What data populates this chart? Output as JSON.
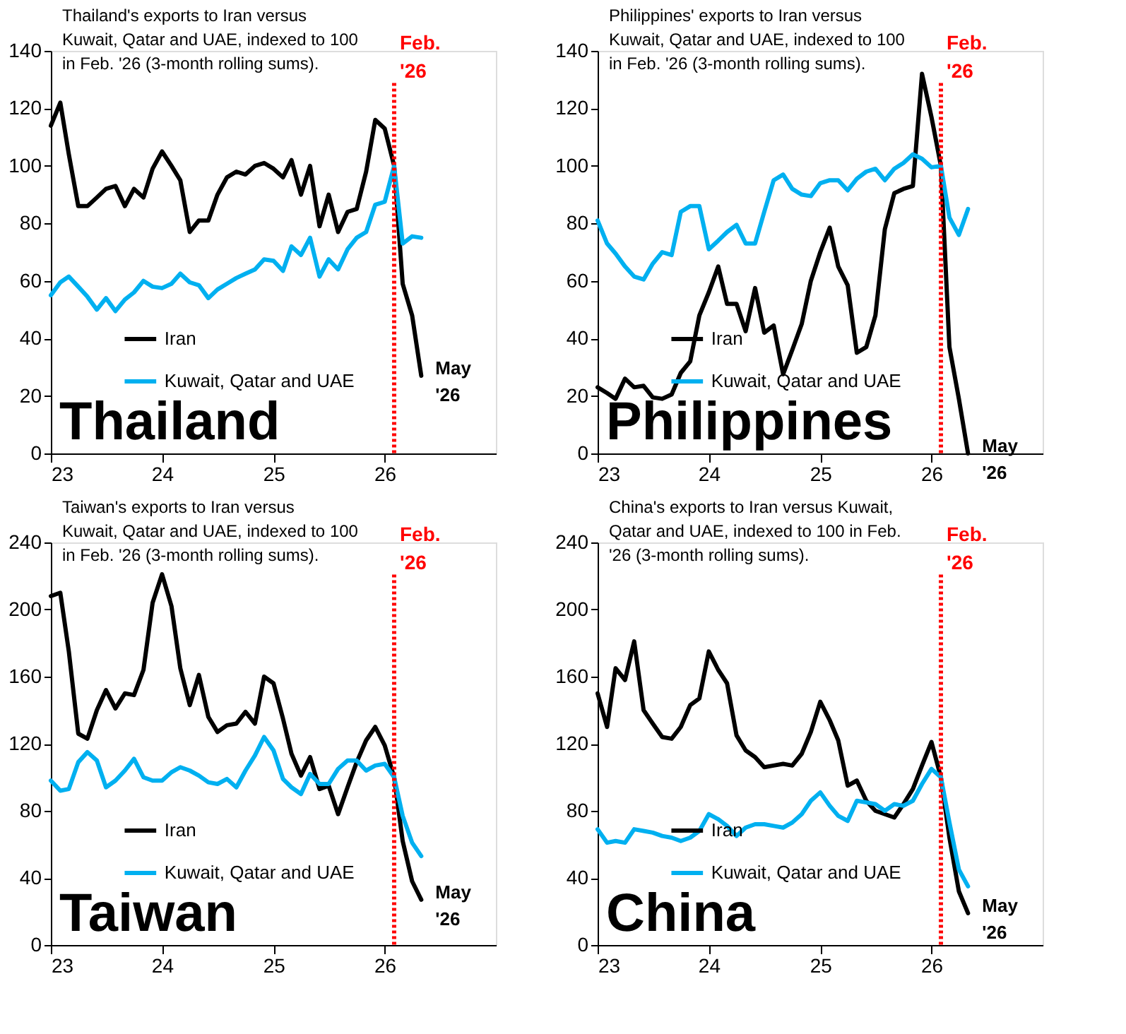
{
  "chart_data": [
    {
      "type": "line",
      "title": "Thailand's exports to Iran versus Kuwait, Qatar and UAE, indexed to 100 in Feb. '26 (3-month rolling sums).",
      "x": [
        "2023-01",
        "2023-02",
        "2023-03",
        "2023-04",
        "2023-05",
        "2023-06",
        "2023-07",
        "2023-08",
        "2023-09",
        "2023-10",
        "2023-11",
        "2023-12",
        "2024-01",
        "2024-02",
        "2024-03",
        "2024-04",
        "2024-05",
        "2024-06",
        "2024-07",
        "2024-08",
        "2024-09",
        "2024-10",
        "2024-11",
        "2024-12",
        "2025-01",
        "2025-02",
        "2025-03",
        "2025-04",
        "2025-05",
        "2025-06",
        "2025-07",
        "2025-08",
        "2025-09",
        "2025-10",
        "2025-11",
        "2025-12",
        "2026-01",
        "2026-02",
        "2026-03",
        "2026-04",
        "2026-05"
      ],
      "series": [
        {
          "name": "Iran",
          "color": "#000000",
          "values": [
            114,
            122,
            104,
            86,
            86,
            89,
            92,
            93,
            86,
            92,
            89,
            99,
            105,
            100,
            95,
            77,
            81,
            81,
            90,
            96,
            98,
            97,
            100,
            101,
            99,
            96,
            102,
            90,
            100,
            79,
            90,
            77,
            84,
            85,
            98,
            116,
            113,
            100,
            59,
            48,
            27
          ]
        },
        {
          "name": "Kuwait, Qatar and UAE",
          "color": "#00b0f0",
          "values": [
            55,
            59.5,
            61.5,
            58,
            54.5,
            50,
            54,
            49.5,
            53.5,
            56,
            60,
            58,
            57.5,
            59,
            62.5,
            59.5,
            58.5,
            54,
            57,
            59,
            61,
            62.5,
            64,
            67.5,
            67,
            63.5,
            72,
            69,
            75,
            61.5,
            67.5,
            64,
            71,
            75,
            77,
            86.5,
            87.5,
            100,
            73,
            75.5,
            75
          ]
        }
      ],
      "xlim": [
        "2023-01",
        "2027-01"
      ],
      "xticks": [
        {
          "value": "2023-01",
          "label": "23"
        },
        {
          "value": "2024-01",
          "label": "24"
        },
        {
          "value": "2025-01",
          "label": "25"
        },
        {
          "value": "2026-01",
          "label": "26"
        }
      ],
      "ylim": [
        0,
        140
      ],
      "yticks": [
        0,
        20,
        40,
        60,
        80,
        100,
        120,
        140
      ],
      "ref_lines": [
        {
          "axis": "x",
          "value": "2026-02",
          "label": "Feb. '26",
          "color": "#ff0000",
          "line_style": "dotted"
        }
      ],
      "annotations": [
        "Thailand",
        {
          "text": "May '26",
          "x": "2026-05",
          "y": 27
        }
      ],
      "legend": "bottom left"
    },
    {
      "type": "line",
      "title": "Philippines' exports to Iran versus Kuwait, Qatar and UAE, indexed to 100 in Feb. '26 (3-month rolling sums).",
      "x": [
        "2023-01",
        "2023-02",
        "2023-03",
        "2023-04",
        "2023-05",
        "2023-06",
        "2023-07",
        "2023-08",
        "2023-09",
        "2023-10",
        "2023-11",
        "2023-12",
        "2024-01",
        "2024-02",
        "2024-03",
        "2024-04",
        "2024-05",
        "2024-06",
        "2024-07",
        "2024-08",
        "2024-09",
        "2024-10",
        "2024-11",
        "2024-12",
        "2025-01",
        "2025-02",
        "2025-03",
        "2025-04",
        "2025-05",
        "2025-06",
        "2025-07",
        "2025-08",
        "2025-09",
        "2025-10",
        "2025-11",
        "2025-12",
        "2026-01",
        "2026-02",
        "2026-03",
        "2026-04",
        "2026-05"
      ],
      "series": [
        {
          "name": "Iran",
          "color": "#000000",
          "values": [
            23,
            21,
            19,
            26,
            23,
            23.5,
            19.5,
            19,
            20.5,
            28,
            32,
            48,
            56,
            65,
            52,
            52,
            42.5,
            57.5,
            42,
            44.5,
            27.5,
            36,
            45,
            60,
            70,
            78.5,
            65,
            58.5,
            35,
            37,
            48,
            78,
            90.5,
            92,
            93,
            132,
            117,
            100,
            37,
            19,
            0
          ]
        },
        {
          "name": "Kuwait, Qatar and UAE",
          "color": "#00b0f0",
          "values": [
            81,
            73,
            69.5,
            65,
            61.5,
            60.5,
            66,
            70,
            69,
            84,
            86,
            86,
            71,
            74,
            77,
            79.5,
            73,
            73,
            84,
            95,
            97,
            92,
            90,
            89.5,
            94,
            95,
            95,
            91.5,
            95.5,
            98,
            99,
            95,
            99,
            101,
            104,
            102.5,
            99.5,
            100,
            82,
            76,
            85
          ]
        }
      ],
      "xlim": [
        "2023-01",
        "2027-01"
      ],
      "xticks": [
        {
          "value": "2023-01",
          "label": "23"
        },
        {
          "value": "2024-01",
          "label": "24"
        },
        {
          "value": "2025-01",
          "label": "25"
        },
        {
          "value": "2026-01",
          "label": "26"
        }
      ],
      "ylim": [
        0,
        140
      ],
      "yticks": [
        0,
        20,
        40,
        60,
        80,
        100,
        120,
        140
      ],
      "ref_lines": [
        {
          "axis": "x",
          "value": "2026-02",
          "label": "Feb. '26",
          "color": "#ff0000",
          "line_style": "dotted"
        }
      ],
      "annotations": [
        "Philippines",
        {
          "text": "May '26",
          "x": "2026-05",
          "y": 0
        }
      ],
      "legend": "bottom left"
    },
    {
      "type": "line",
      "title": "Taiwan's exports to Iran versus Kuwait, Qatar and UAE, indexed to 100 in Feb. '26 (3-month rolling sums).",
      "x": [
        "2023-01",
        "2023-02",
        "2023-03",
        "2023-04",
        "2023-05",
        "2023-06",
        "2023-07",
        "2023-08",
        "2023-09",
        "2023-10",
        "2023-11",
        "2023-12",
        "2024-01",
        "2024-02",
        "2024-03",
        "2024-04",
        "2024-05",
        "2024-06",
        "2024-07",
        "2024-08",
        "2024-09",
        "2024-10",
        "2024-11",
        "2024-12",
        "2025-01",
        "2025-02",
        "2025-03",
        "2025-04",
        "2025-05",
        "2025-06",
        "2025-07",
        "2025-08",
        "2025-09",
        "2025-10",
        "2025-11",
        "2025-12",
        "2026-01",
        "2026-02",
        "2026-03",
        "2026-04",
        "2026-05"
      ],
      "series": [
        {
          "name": "Iran",
          "color": "#000000",
          "values": [
            208,
            210,
            175,
            126,
            123,
            140,
            152,
            141,
            150,
            149,
            164,
            204,
            221,
            202,
            165,
            143,
            161,
            136,
            127,
            131,
            132,
            139,
            132,
            160,
            156,
            135,
            114,
            101,
            112,
            93,
            95,
            78,
            94,
            109,
            122,
            130,
            119,
            100,
            62,
            38,
            27
          ]
        },
        {
          "name": "Kuwait, Qatar and UAE",
          "color": "#00b0f0",
          "values": [
            98,
            92,
            93,
            109,
            115,
            110,
            94,
            98,
            104,
            111,
            100,
            98,
            98,
            103,
            106,
            104,
            101,
            97,
            96,
            99,
            94,
            104,
            113,
            124,
            116,
            99,
            94,
            90,
            102,
            96,
            96,
            105,
            110,
            110,
            104,
            107,
            108,
            100,
            77,
            61,
            53
          ]
        }
      ],
      "xlim": [
        "2023-01",
        "2027-01"
      ],
      "xticks": [
        {
          "value": "2023-01",
          "label": "23"
        },
        {
          "value": "2024-01",
          "label": "24"
        },
        {
          "value": "2025-01",
          "label": "25"
        },
        {
          "value": "2026-01",
          "label": "26"
        }
      ],
      "ylim": [
        0,
        240
      ],
      "yticks": [
        0,
        40,
        80,
        120,
        160,
        200,
        240
      ],
      "ref_lines": [
        {
          "axis": "x",
          "value": "2026-02",
          "label": "Feb. '26",
          "color": "#ff0000",
          "line_style": "dotted"
        }
      ],
      "annotations": [
        "Taiwan",
        {
          "text": "May '26",
          "x": "2026-05",
          "y": 27
        }
      ],
      "legend": "bottom left"
    },
    {
      "type": "line",
      "title": "China's exports to Iran versus Kuwait, Qatar and UAE, indexed to 100 in Feb. '26 (3-month rolling sums).",
      "x": [
        "2023-01",
        "2023-02",
        "2023-03",
        "2023-04",
        "2023-05",
        "2023-06",
        "2023-07",
        "2023-08",
        "2023-09",
        "2023-10",
        "2023-11",
        "2023-12",
        "2024-01",
        "2024-02",
        "2024-03",
        "2024-04",
        "2024-05",
        "2024-06",
        "2024-07",
        "2024-08",
        "2024-09",
        "2024-10",
        "2024-11",
        "2024-12",
        "2025-01",
        "2025-02",
        "2025-03",
        "2025-04",
        "2025-05",
        "2025-06",
        "2025-07",
        "2025-08",
        "2025-09",
        "2025-10",
        "2025-11",
        "2025-12",
        "2026-01",
        "2026-02",
        "2026-03",
        "2026-04",
        "2026-05"
      ],
      "series": [
        {
          "name": "Iran",
          "color": "#000000",
          "values": [
            150,
            130,
            165,
            158,
            181,
            140,
            132,
            124,
            123,
            130,
            143,
            147,
            175,
            164,
            156,
            125,
            116,
            112,
            106,
            107,
            108,
            107,
            114,
            127,
            145,
            134,
            122,
            95,
            98,
            86,
            80,
            78,
            76,
            84,
            93,
            107,
            121,
            100,
            64,
            32,
            19
          ]
        },
        {
          "name": "Kuwait, Qatar and UAE",
          "color": "#00b0f0",
          "values": [
            69,
            61,
            62,
            61,
            69,
            68,
            67,
            65,
            64,
            62,
            64,
            68,
            78,
            75,
            71,
            65,
            70,
            72,
            72,
            71,
            70,
            73,
            78,
            86,
            91,
            83,
            77,
            74,
            86,
            85,
            84,
            80,
            84,
            83,
            86,
            96,
            105,
            100,
            73,
            45,
            35
          ]
        }
      ],
      "xlim": [
        "2023-01",
        "2027-01"
      ],
      "xticks": [
        {
          "value": "2023-01",
          "label": "23"
        },
        {
          "value": "2024-01",
          "label": "24"
        },
        {
          "value": "2025-01",
          "label": "25"
        },
        {
          "value": "2026-01",
          "label": "26"
        }
      ],
      "ylim": [
        0,
        240
      ],
      "yticks": [
        0,
        40,
        80,
        120,
        160,
        200,
        240
      ],
      "ref_lines": [
        {
          "axis": "x",
          "value": "2026-02",
          "label": "Feb. '26",
          "color": "#ff0000",
          "line_style": "dotted"
        }
      ],
      "annotations": [
        "China",
        {
          "text": "May '26",
          "x": "2026-05",
          "y": 19
        }
      ],
      "legend": "bottom left"
    }
  ]
}
